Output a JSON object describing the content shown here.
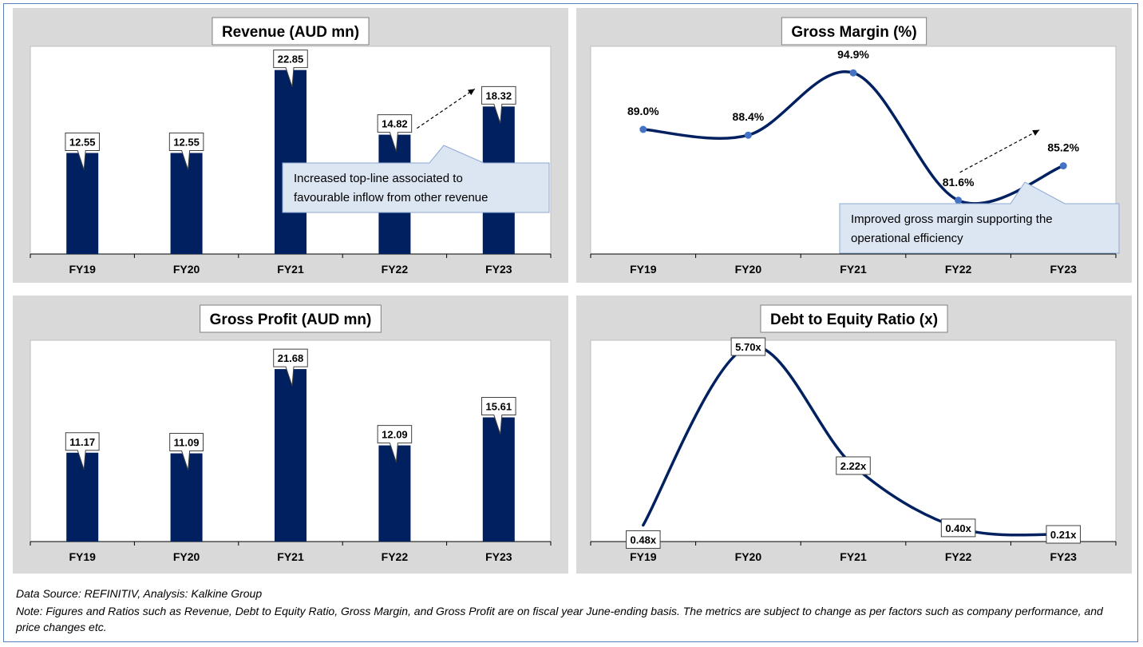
{
  "chart_data": [
    {
      "type": "bar",
      "title": "Revenue (AUD mn)",
      "categories": [
        "FY19",
        "FY20",
        "FY21",
        "FY22",
        "FY23"
      ],
      "values": [
        12.55,
        12.55,
        22.85,
        14.82,
        18.32
      ],
      "value_labels": [
        "12.55",
        "12.55",
        "22.85",
        "14.82",
        "18.32"
      ],
      "ylim": [
        0,
        25
      ],
      "grid": false,
      "bar_color": "#002060",
      "annotation": "Increased top-line associated to favourable inflow from other revenue",
      "annotation_lines": [
        "Increased top-line associated to",
        "favourable inflow from other revenue"
      ],
      "trend_arrow": "up"
    },
    {
      "type": "line",
      "title": "Gross Margin (%)",
      "categories": [
        "FY19",
        "FY20",
        "FY21",
        "FY22",
        "FY23"
      ],
      "values": [
        89.0,
        88.4,
        94.9,
        81.6,
        85.2
      ],
      "value_labels": [
        "89.0%",
        "88.4%",
        "94.9%",
        "81.6%",
        "85.2%"
      ],
      "ylim": [
        76,
        97
      ],
      "grid": false,
      "smooth": true,
      "line_color": "#002060",
      "marker_color": "#4472c4",
      "annotation": "Improved gross margin supporting the operational efficiency",
      "annotation_lines": [
        "Improved gross margin supporting the",
        "operational efficiency"
      ],
      "trend_arrow": "up"
    },
    {
      "type": "bar",
      "title": "Gross Profit (AUD mn)",
      "categories": [
        "FY19",
        "FY20",
        "FY21",
        "FY22",
        "FY23"
      ],
      "values": [
        11.17,
        11.09,
        21.68,
        12.09,
        15.61
      ],
      "value_labels": [
        "11.17",
        "11.09",
        "21.68",
        "12.09",
        "15.61"
      ],
      "ylim": [
        0,
        24.5
      ],
      "grid": false,
      "bar_color": "#002060"
    },
    {
      "type": "line",
      "title": "Debt to Equity Ratio (x)",
      "categories": [
        "FY19",
        "FY20",
        "FY21",
        "FY22",
        "FY23"
      ],
      "values": [
        0.48,
        5.7,
        2.22,
        0.4,
        0.21
      ],
      "value_labels": [
        "0.48x",
        "5.70x",
        "2.22x",
        "0.40x",
        "0.21x"
      ],
      "ylim": [
        0,
        5.7
      ],
      "grid": false,
      "smooth": true,
      "line_color": "#002060"
    }
  ],
  "footer": {
    "source": "Data Source: REFINITIV, Analysis: Kalkine Group",
    "note": "Note: Figures and Ratios such as Revenue, Debt to Equity Ratio, Gross Margin, and Gross Profit are on fiscal year June-ending basis. The metrics are subject to change as per factors such as company performance, and price changes etc."
  }
}
